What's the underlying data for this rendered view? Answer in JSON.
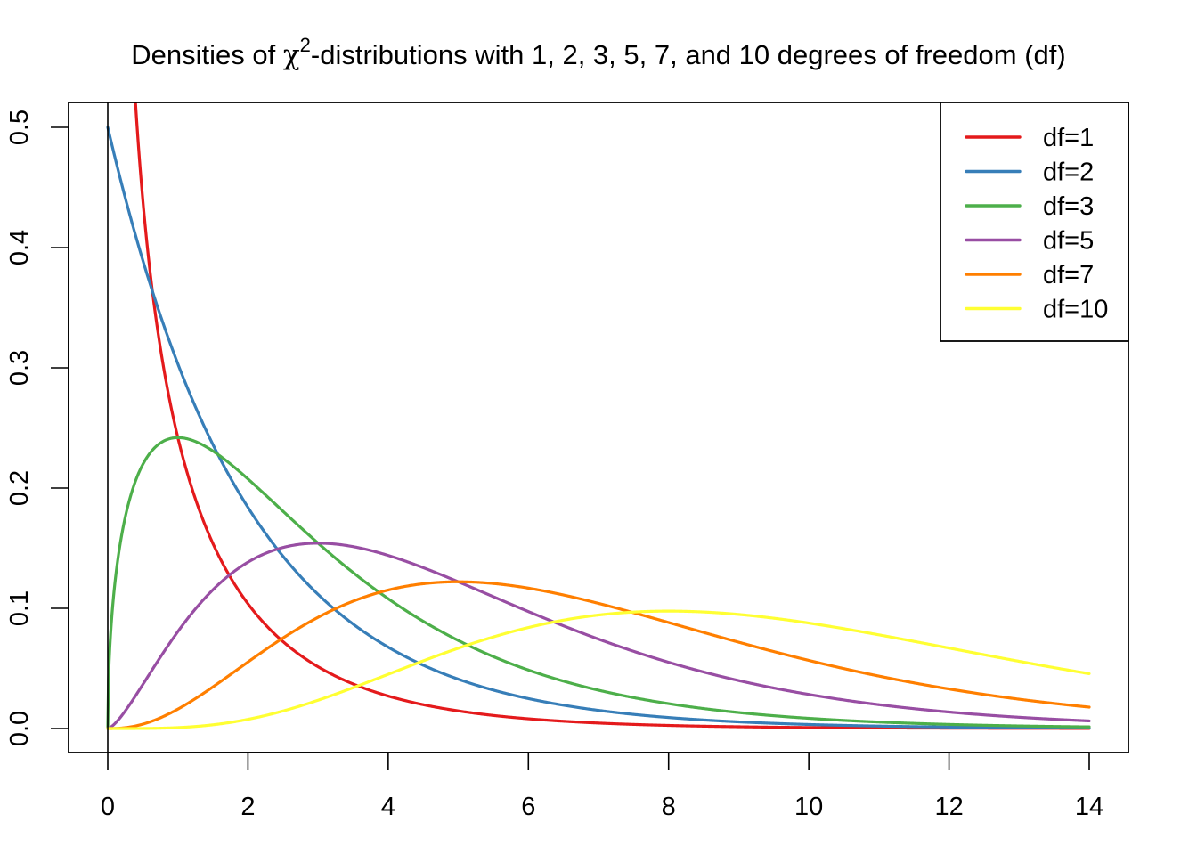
{
  "chart_data": {
    "type": "line",
    "title": "Densities of χ²-distributions with 1, 2, 3, 5, 7, and 10 degrees of freedom (df)",
    "title_parts": {
      "prefix": "Densities of ",
      "symbol": "χ",
      "superscript": "2",
      "suffix": "-distributions with 1, 2, 3, 5, 7, and 10 degrees of freedom (df)"
    },
    "xlabel": "",
    "ylabel": "",
    "xlim": [
      -0.56,
      14.56
    ],
    "ylim": [
      -0.02,
      0.52
    ],
    "x_ticks": [
      0,
      2,
      4,
      6,
      8,
      10,
      12,
      14
    ],
    "x_tick_labels": [
      "0",
      "2",
      "4",
      "6",
      "8",
      "10",
      "12",
      "14"
    ],
    "y_ticks": [
      0.0,
      0.1,
      0.2,
      0.3,
      0.4,
      0.5
    ],
    "y_tick_labels": [
      "0.0",
      "0.1",
      "0.2",
      "0.3",
      "0.4",
      "0.5"
    ],
    "grid": false,
    "vertical_reference_line_x": 0,
    "legend": {
      "position": "topright",
      "entries": [
        "df=1",
        "df=2",
        "df=3",
        "df=5",
        "df=7",
        "df=10"
      ]
    },
    "x_range": [
      0,
      14
    ],
    "x": [
      0,
      1,
      2,
      3,
      4,
      5,
      6,
      7,
      8,
      9,
      10,
      11,
      12,
      13,
      14
    ],
    "series": [
      {
        "name": "df=1",
        "df": 1,
        "color": "#E41A1C",
        "values": [
          null,
          0.242,
          0.104,
          0.051,
          0.027,
          0.015,
          0.008,
          0.005,
          0.003,
          0.001,
          0.001,
          0.0,
          0.0,
          0.0,
          0.0
        ]
      },
      {
        "name": "df=2",
        "df": 2,
        "color": "#377EB8",
        "values": [
          0.5,
          0.303,
          0.184,
          0.112,
          0.068,
          0.041,
          0.025,
          0.015,
          0.009,
          0.006,
          0.003,
          0.002,
          0.001,
          0.001,
          0.0
        ]
      },
      {
        "name": "df=3",
        "df": 3,
        "color": "#4DAF4A",
        "values": [
          0.0,
          0.242,
          0.208,
          0.154,
          0.108,
          0.073,
          0.049,
          0.032,
          0.021,
          0.013,
          0.008,
          0.005,
          0.003,
          0.002,
          0.001
        ]
      },
      {
        "name": "df=5",
        "df": 5,
        "color": "#984EA3",
        "values": [
          0.0,
          0.081,
          0.138,
          0.154,
          0.144,
          0.122,
          0.098,
          0.076,
          0.057,
          0.042,
          0.03,
          0.021,
          0.015,
          0.01,
          0.007
        ]
      },
      {
        "name": "df=7",
        "df": 7,
        "color": "#FF7F00",
        "values": [
          0.0,
          0.013,
          0.055,
          0.094,
          0.116,
          0.122,
          0.116,
          0.104,
          0.089,
          0.074,
          0.06,
          0.047,
          0.037,
          0.028,
          0.021
        ]
      },
      {
        "name": "df=10",
        "df": 10,
        "color": "#FFFF33",
        "values": [
          0.0,
          0.0,
          0.008,
          0.026,
          0.049,
          0.067,
          0.087,
          0.093,
          0.098,
          0.094,
          0.088,
          0.078,
          0.068,
          0.056,
          0.046
        ]
      }
    ]
  }
}
